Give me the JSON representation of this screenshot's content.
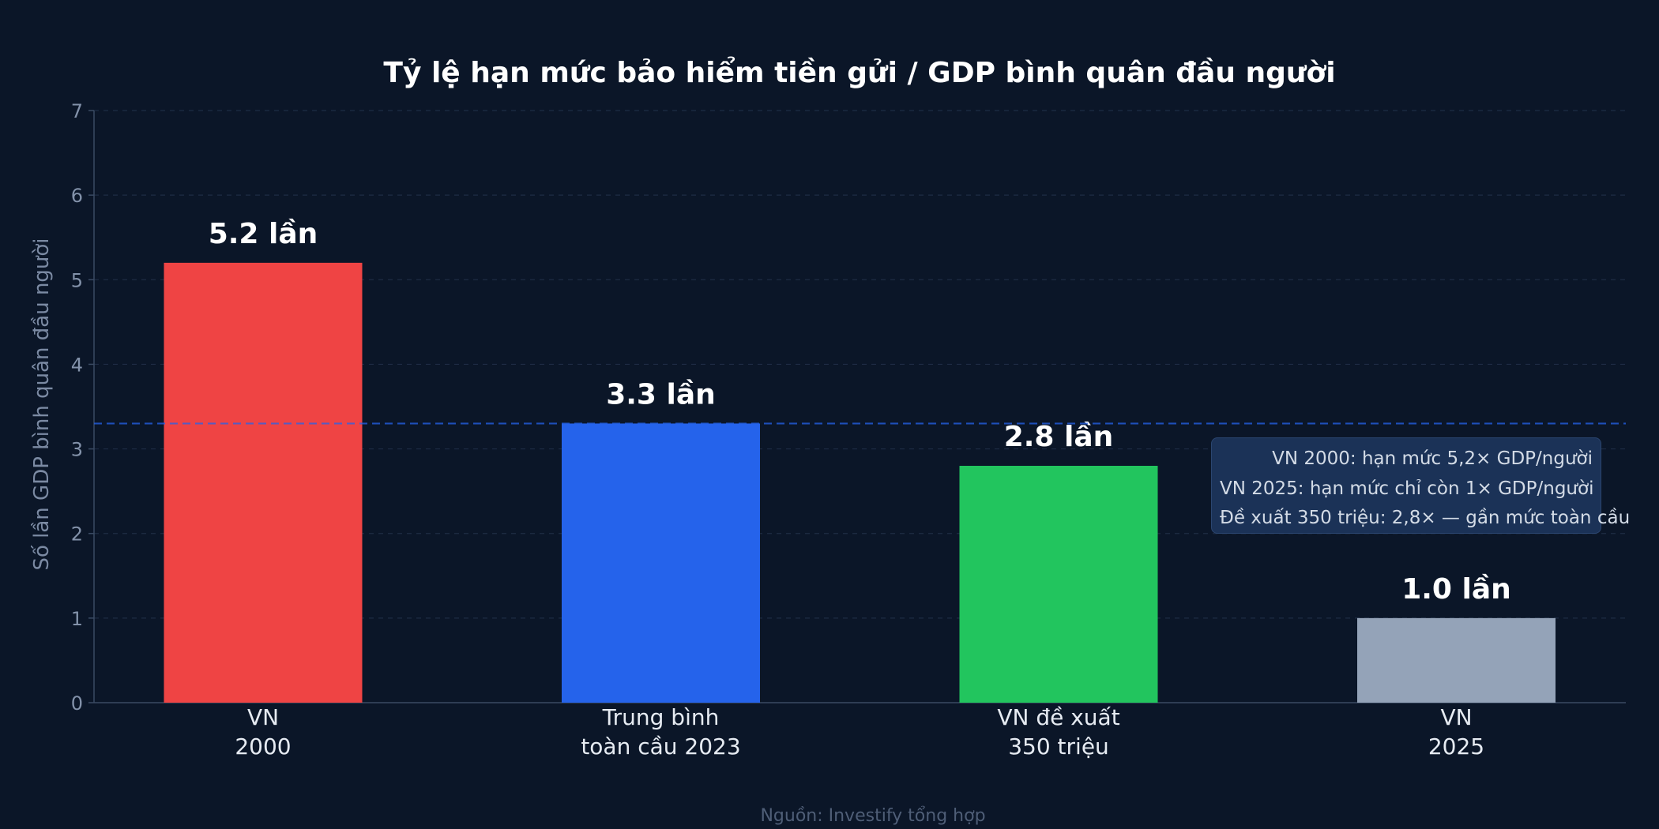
{
  "chart_data": {
    "type": "bar",
    "title": "Tỷ lệ hạn mức bảo hiểm tiền gửi / GDP bình quân đầu người",
    "ylabel": "Số lần GDP bình quân đầu người",
    "xlabel": "",
    "ylim": [
      0,
      7
    ],
    "yticks": [
      "0",
      "1",
      "2",
      "3",
      "4",
      "5",
      "6",
      "7"
    ],
    "grid": true,
    "categories": [
      [
        "VN",
        "2000"
      ],
      [
        "Trung bình",
        "toàn cầu 2023"
      ],
      [
        "VN đề xuất",
        "350 triệu"
      ],
      [
        "VN",
        "2025"
      ]
    ],
    "values": [
      5.2,
      3.3,
      2.8,
      1.0
    ],
    "data_labels": [
      "5.2 lần",
      "3.3 lần",
      "2.8 lần",
      "1.0 lần"
    ],
    "colors": [
      "#ef4444",
      "#2563eb",
      "#22c55e",
      "#94a3b8"
    ],
    "reference_line": {
      "value": 3.3,
      "color": "#2563eb",
      "style": "dashed"
    },
    "annotation": [
      "VN 2000: hạn mức 5,2× GDP/người",
      "VN 2025: hạn mức chỉ còn 1× GDP/người",
      "Đề xuất 350 triệu: 2,8× — gần mức toàn cầu"
    ],
    "source": "Nguồn: Investify tổng hợp"
  },
  "colors": {
    "background": "#0b1628",
    "grid": "#1e2c44",
    "axis": "#3a4a63",
    "note_bg": "#1b3257"
  }
}
